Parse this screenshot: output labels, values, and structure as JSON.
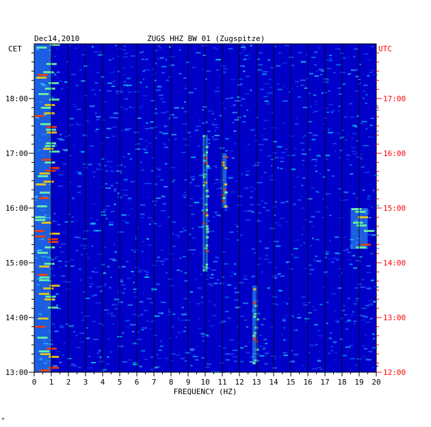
{
  "chart_data": {
    "type": "heatmap",
    "title": "ZUGS HHZ BW 01 (Zugspitze)",
    "date": "Dec14,2010",
    "xlabel": "FREQUENCY (HZ)",
    "left_axis_label": "CET",
    "right_axis_label": "UTC",
    "xlim": [
      0,
      20
    ],
    "x_ticks": [
      "0",
      "1",
      "2",
      "3",
      "4",
      "5",
      "6",
      "7",
      "8",
      "9",
      "10",
      "11",
      "12",
      "13",
      "14",
      "15",
      "16",
      "17",
      "18",
      "19",
      "20"
    ],
    "time_range_cet": [
      "13:00",
      "19:00"
    ],
    "cet_ticks": [
      "13:00",
      "14:00",
      "15:00",
      "16:00",
      "17:00",
      "18:00"
    ],
    "utc_ticks": [
      "12:00",
      "13:00",
      "14:00",
      "15:00",
      "16:00",
      "17:00"
    ],
    "background_color": "#0000c8",
    "label_colors": {
      "cet": "#000000",
      "utc": "#ff0000"
    },
    "notable_features": [
      {
        "description": "persistent low-frequency energy",
        "freq_hz": [
          0,
          1
        ],
        "time_cet": [
          "13:00",
          "19:00"
        ]
      },
      {
        "description": "strong tonal line",
        "freq_hz": 12.9,
        "time_cet": [
          "13:10",
          "14:35"
        ]
      },
      {
        "description": "intermittent lines",
        "freq_hz": 10,
        "time_cet": [
          "14:50",
          "17:20"
        ]
      },
      {
        "description": "intermittent lines",
        "freq_hz": 11.1,
        "time_cet": [
          "16:00",
          "17:00"
        ]
      },
      {
        "description": "high-frequency patches",
        "freq_hz": [
          18.5,
          19.5
        ],
        "time_cet": [
          "15:15",
          "16:00"
        ]
      }
    ]
  },
  "footer_mark": "*"
}
